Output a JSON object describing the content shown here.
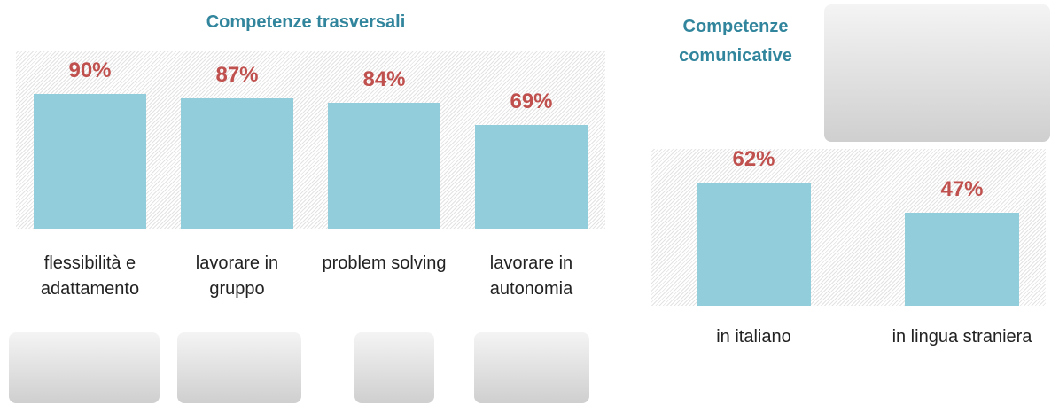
{
  "chart_data": [
    {
      "type": "bar",
      "title": "Competenze trasversali",
      "categories": [
        "flessibilità e adattamento",
        "lavorare in gruppo",
        "problem solving",
        "lavorare in autonomia"
      ],
      "values": [
        90,
        87,
        84,
        69
      ],
      "value_labels": [
        "90%",
        "87%",
        "84%",
        "69%"
      ],
      "color": "#92cddc",
      "label_color": "#c0504d",
      "ylim": [
        0,
        119
      ]
    },
    {
      "type": "bar",
      "title": "Competenze comunicative",
      "categories": [
        "in italiano",
        "in lingua straniera"
      ],
      "values": [
        62,
        47
      ],
      "value_labels": [
        "62%",
        "47%"
      ],
      "color": "#92cddc",
      "label_color": "#c0504d",
      "ylim": [
        0,
        79
      ]
    }
  ]
}
